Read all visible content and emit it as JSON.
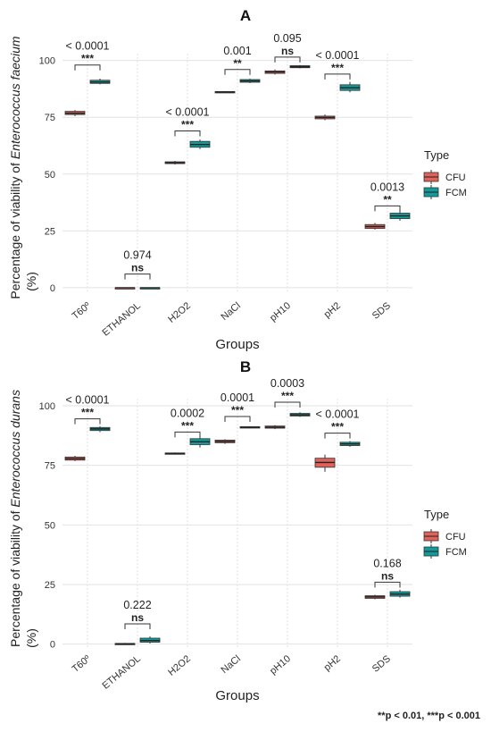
{
  "footnote": "**p < 0.01, ***p < 0.001",
  "colors": {
    "CFU": "#e0625a",
    "FCM": "#139a9a",
    "grid": "#e2e2e2",
    "text": "#333333"
  },
  "chart_data": [
    {
      "type": "box",
      "panel_letter": "A",
      "title": "A",
      "xlabel": "Groups",
      "ylabel_prefix": "Percentage of viability of ",
      "ylabel_species": "Enterococcus faecium",
      "ylabel_unit": "(%)",
      "ylim": [
        -2,
        103
      ],
      "yticks": [
        0,
        25,
        50,
        75,
        100
      ],
      "grid": true,
      "legend": {
        "title": "Type",
        "position": "right",
        "entries": [
          "CFU",
          "FCM"
        ]
      },
      "categories": [
        "T60º",
        "ETHANOL",
        "H2O2",
        "NaCl",
        "pH10",
        "pH2",
        "SDS"
      ],
      "series": [
        {
          "name": "CFU",
          "boxes": [
            {
              "min": 75.5,
              "q1": 76.2,
              "median": 76.8,
              "q3": 77.6,
              "max": 78.2
            },
            {
              "min": 0,
              "q1": 0,
              "median": 0,
              "q3": 0,
              "max": 0
            },
            {
              "min": 54.2,
              "q1": 54.6,
              "median": 55.0,
              "q3": 55.4,
              "max": 55.8
            },
            {
              "min": 85.7,
              "q1": 85.9,
              "median": 86.1,
              "q3": 86.3,
              "max": 86.5
            },
            {
              "min": 93.8,
              "q1": 94.3,
              "median": 94.9,
              "q3": 95.4,
              "max": 96.0
            },
            {
              "min": 73.7,
              "q1": 74.3,
              "median": 74.9,
              "q3": 75.5,
              "max": 76.2
            },
            {
              "min": 25.6,
              "q1": 26.1,
              "median": 26.9,
              "q3": 27.8,
              "max": 28.5
            }
          ]
        },
        {
          "name": "FCM",
          "boxes": [
            {
              "min": 89.5,
              "q1": 89.9,
              "median": 90.5,
              "q3": 91.3,
              "max": 92.0
            },
            {
              "min": 0,
              "q1": 0,
              "median": 0,
              "q3": 0,
              "max": 0
            },
            {
              "min": 61.0,
              "q1": 61.8,
              "median": 63.0,
              "q3": 64.4,
              "max": 65.2
            },
            {
              "min": 90.0,
              "q1": 90.4,
              "median": 91.0,
              "q3": 91.6,
              "max": 92.0
            },
            {
              "min": 96.5,
              "q1": 96.8,
              "median": 97.2,
              "q3": 97.7,
              "max": 98.0
            },
            {
              "min": 86.0,
              "q1": 86.8,
              "median": 88.0,
              "q3": 89.3,
              "max": 90.5
            },
            {
              "min": 29.5,
              "q1": 30.4,
              "median": 31.6,
              "q3": 32.8,
              "max": 33.8
            }
          ]
        }
      ],
      "annotations": [
        {
          "category": "T60º",
          "pvalue": "< 0.0001",
          "sig": "***",
          "bracket_y": 98
        },
        {
          "category": "ETHANOL",
          "pvalue": "0.974",
          "sig": "ns",
          "bracket_y": 6
        },
        {
          "category": "H2O2",
          "pvalue": "< 0.0001",
          "sig": "***",
          "bracket_y": 69
        },
        {
          "category": "NaCl",
          "pvalue": "0.001",
          "sig": "**",
          "bracket_y": 96
        },
        {
          "category": "pH10",
          "pvalue": "0.095",
          "sig": "ns",
          "bracket_y": 101.5
        },
        {
          "category": "pH2",
          "pvalue": "< 0.0001",
          "sig": "***",
          "bracket_y": 94
        },
        {
          "category": "SDS",
          "pvalue": "0.0013",
          "sig": "**",
          "bracket_y": 36
        }
      ]
    },
    {
      "type": "box",
      "panel_letter": "B",
      "title": "B",
      "xlabel": "Groups",
      "ylabel_prefix": "Percentage of viability of ",
      "ylabel_species": "Enterococcus durans",
      "ylabel_unit": "(%)",
      "ylim": [
        -2,
        103
      ],
      "yticks": [
        0,
        25,
        50,
        75,
        100
      ],
      "grid": true,
      "legend": {
        "title": "Type",
        "position": "right",
        "entries": [
          "CFU",
          "FCM"
        ]
      },
      "categories": [
        "T60º",
        "ETHANOL",
        "H2O2",
        "NaCl",
        "pH10",
        "pH2",
        "SDS"
      ],
      "series": [
        {
          "name": "CFU",
          "boxes": [
            {
              "min": 76.8,
              "q1": 77.2,
              "median": 77.8,
              "q3": 78.5,
              "max": 79.0
            },
            {
              "min": 0,
              "q1": 0,
              "median": 0.1,
              "q3": 0.3,
              "max": 0.5
            },
            {
              "min": 79.6,
              "q1": 79.8,
              "median": 80.0,
              "q3": 80.2,
              "max": 80.4
            },
            {
              "min": 84.0,
              "q1": 84.5,
              "median": 85.0,
              "q3": 85.6,
              "max": 86.0
            },
            {
              "min": 90.2,
              "q1": 90.6,
              "median": 91.0,
              "q3": 91.5,
              "max": 91.9
            },
            {
              "min": 72.3,
              "q1": 74.2,
              "median": 76.2,
              "q3": 78.0,
              "max": 79.5
            },
            {
              "min": 18.8,
              "q1": 19.2,
              "median": 19.8,
              "q3": 20.3,
              "max": 20.7
            }
          ]
        },
        {
          "name": "FCM",
          "boxes": [
            {
              "min": 89.0,
              "q1": 89.6,
              "median": 90.3,
              "q3": 90.9,
              "max": 91.4
            },
            {
              "min": 0.3,
              "q1": 0.8,
              "median": 1.5,
              "q3": 2.5,
              "max": 3.2
            },
            {
              "min": 82.5,
              "q1": 83.7,
              "median": 84.9,
              "q3": 86.2,
              "max": 87.3
            },
            {
              "min": 90.6,
              "q1": 90.8,
              "median": 91.0,
              "q3": 91.2,
              "max": 91.4
            },
            {
              "min": 95.3,
              "q1": 95.7,
              "median": 96.2,
              "q3": 96.8,
              "max": 97.3
            },
            {
              "min": 82.8,
              "q1": 83.3,
              "median": 84.0,
              "q3": 84.7,
              "max": 85.2
            },
            {
              "min": 19.5,
              "q1": 20.1,
              "median": 21.0,
              "q3": 22.0,
              "max": 22.8
            }
          ]
        }
      ],
      "annotations": [
        {
          "category": "T60º",
          "pvalue": "< 0.0001",
          "sig": "***",
          "bracket_y": 94.5
        },
        {
          "category": "ETHANOL",
          "pvalue": "0.222",
          "sig": "ns",
          "bracket_y": 8.5
        },
        {
          "category": "H2O2",
          "pvalue": "0.0002",
          "sig": "***",
          "bracket_y": 89
        },
        {
          "category": "NaCl",
          "pvalue": "0.0001",
          "sig": "***",
          "bracket_y": 95.5
        },
        {
          "category": "pH10",
          "pvalue": "0.0003",
          "sig": "***",
          "bracket_y": 101.5
        },
        {
          "category": "pH2",
          "pvalue": "< 0.0001",
          "sig": "***",
          "bracket_y": 88.5
        },
        {
          "category": "SDS",
          "pvalue": "0.168",
          "sig": "ns",
          "bracket_y": 26
        }
      ]
    }
  ]
}
